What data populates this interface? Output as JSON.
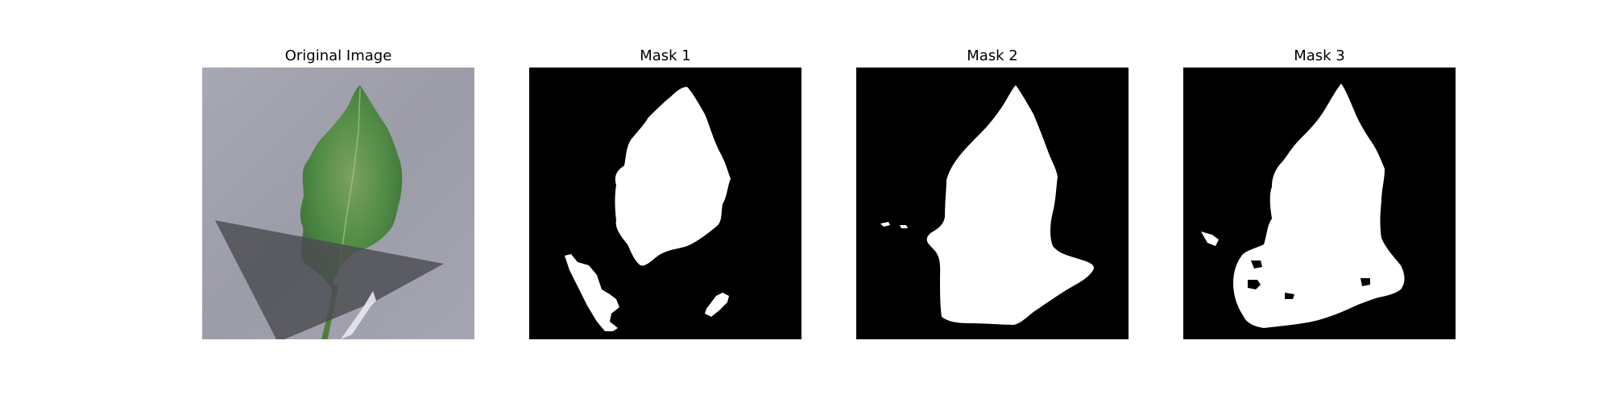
{
  "panels": [
    {
      "title": "Original Image"
    },
    {
      "title": "Mask 1"
    },
    {
      "title": "Mask 2"
    },
    {
      "title": "Mask 3"
    }
  ],
  "colors": {
    "mask_background": "#000000",
    "mask_foreground": "#ffffff",
    "surface": "#9c9ca8",
    "leaf": "#5a8a4a",
    "shadow": "#505055"
  }
}
